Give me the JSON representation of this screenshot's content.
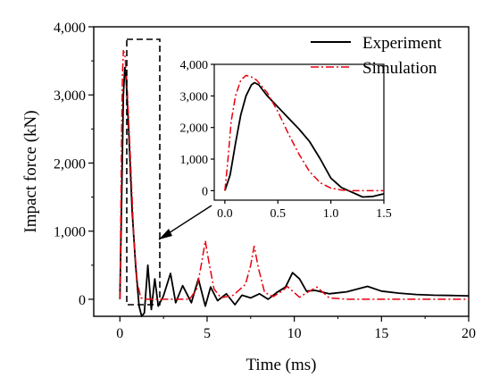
{
  "chart_data": [
    {
      "type": "line",
      "xlabel": "Time (ms)",
      "ylabel": "Impact force (kN)",
      "xlim": [
        -1.5,
        20
      ],
      "ylim": [
        -250,
        4000
      ],
      "xticks": [
        0,
        5,
        10,
        15,
        20
      ],
      "yticks": [
        0,
        1000,
        2000,
        3000,
        4000
      ],
      "xtick_labels": [
        "0",
        "5",
        "10",
        "15",
        "20"
      ],
      "ytick_labels": [
        "0",
        "1,000",
        "2,000",
        "3,000",
        "4,000"
      ],
      "legend_position": "top-right",
      "series": [
        {
          "name": "Experiment",
          "color": "#000000",
          "dash": "solid",
          "x": [
            0,
            0.1,
            0.2,
            0.28,
            0.35,
            0.5,
            0.7,
            0.9,
            1.1,
            1.25,
            1.4,
            1.6,
            1.8,
            2.0,
            2.2,
            2.5,
            2.9,
            3.2,
            3.6,
            4.1,
            4.5,
            4.9,
            5.2,
            5.6,
            6.1,
            6.6,
            7.0,
            7.5,
            8.0,
            8.5,
            9.0,
            9.5,
            9.9,
            10.3,
            10.7,
            11.2,
            12.0,
            13.0,
            14.2,
            15.0,
            16.0,
            17.0,
            18.0,
            19.0,
            20.0
          ],
          "y": [
            0,
            1500,
            3000,
            3400,
            3300,
            2500,
            1300,
            500,
            -100,
            -250,
            -200,
            500,
            -150,
            300,
            -100,
            50,
            380,
            -50,
            200,
            -50,
            300,
            -100,
            180,
            -20,
            80,
            -80,
            60,
            20,
            80,
            0,
            100,
            180,
            390,
            300,
            120,
            130,
            80,
            110,
            190,
            120,
            90,
            70,
            60,
            55,
            50
          ]
        },
        {
          "name": "Simulation",
          "color": "#e8000e",
          "dash": "dashdot",
          "x": [
            0,
            0.05,
            0.1,
            0.15,
            0.2,
            0.28,
            0.4,
            0.6,
            0.8,
            1.0,
            1.2,
            1.5,
            2.0,
            3.0,
            4.0,
            4.4,
            4.7,
            4.9,
            5.1,
            5.4,
            5.8,
            6.5,
            7.2,
            7.5,
            7.7,
            7.95,
            8.3,
            8.8,
            9.3,
            9.6,
            9.9,
            10.3,
            10.8,
            11.3,
            12.0,
            13.0,
            15.0,
            20.0
          ],
          "y": [
            0,
            1200,
            2500,
            3300,
            3650,
            3600,
            3200,
            2100,
            900,
            250,
            20,
            0,
            0,
            0,
            0,
            150,
            550,
            860,
            550,
            150,
            20,
            60,
            220,
            500,
            780,
            450,
            100,
            40,
            120,
            190,
            120,
            30,
            110,
            180,
            20,
            0,
            0,
            0
          ]
        }
      ]
    },
    {
      "type": "line",
      "xlim": [
        -0.1,
        1.5
      ],
      "ylim": [
        -300,
        4000
      ],
      "xticks": [
        0,
        0.5,
        1.0,
        1.5
      ],
      "yticks": [
        0,
        1000,
        2000,
        3000,
        4000
      ],
      "xtick_labels": [
        "0.0",
        "0.5",
        "1.0",
        "1.5"
      ],
      "ytick_labels": [
        "0",
        "1,000",
        "2,000",
        "3,000",
        "4,000"
      ],
      "series": [
        {
          "name": "Experiment",
          "color": "#000000",
          "dash": "solid",
          "x": [
            0,
            0.05,
            0.1,
            0.15,
            0.2,
            0.25,
            0.28,
            0.32,
            0.4,
            0.5,
            0.6,
            0.7,
            0.8,
            0.9,
            1.0,
            1.1,
            1.2,
            1.3,
            1.4,
            1.5
          ],
          "y": [
            0,
            500,
            1500,
            2400,
            3000,
            3350,
            3420,
            3350,
            3000,
            2650,
            2300,
            1950,
            1550,
            1000,
            400,
            100,
            -50,
            -200,
            -180,
            -100
          ]
        },
        {
          "name": "Simulation",
          "color": "#e8000e",
          "dash": "dashdot",
          "x": [
            0,
            0.03,
            0.06,
            0.1,
            0.15,
            0.2,
            0.25,
            0.3,
            0.4,
            0.5,
            0.6,
            0.7,
            0.8,
            0.9,
            1.0,
            1.1,
            1.2,
            1.3,
            1.5
          ],
          "y": [
            0,
            1000,
            2200,
            3000,
            3500,
            3650,
            3600,
            3500,
            3100,
            2500,
            1800,
            1150,
            600,
            250,
            80,
            20,
            0,
            0,
            0
          ]
        }
      ]
    }
  ]
}
